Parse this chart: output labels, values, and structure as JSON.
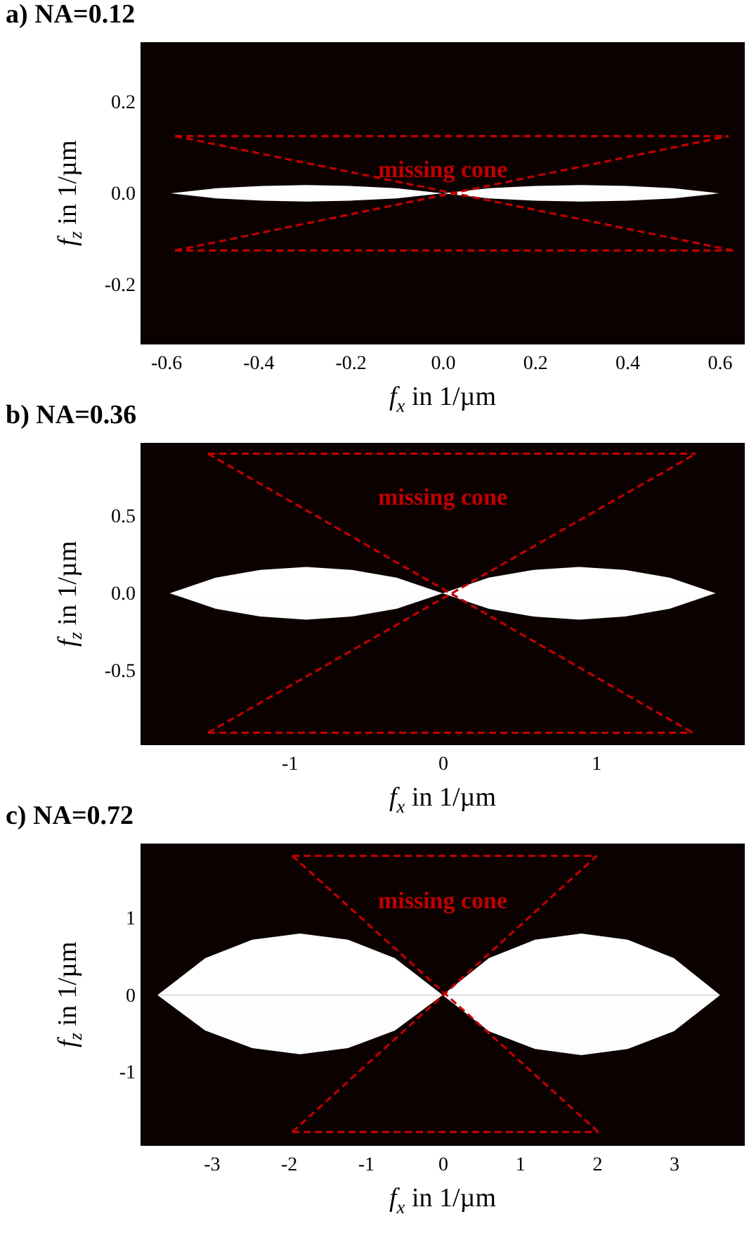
{
  "chart_data": [
    {
      "type": "area",
      "title": "a) NA=0.12",
      "xlabel": "f$_{x}$ in 1/µm",
      "ylabel": "f$_{z}$ in 1/µm",
      "xlim": [
        -0.655,
        0.655
      ],
      "ylim": [
        -0.33,
        0.33
      ],
      "xticks": [
        -0.6,
        -0.4,
        -0.2,
        {
          "value": 0,
          "label": "0.0"
        },
        0.2,
        0.4,
        0.6
      ],
      "yticks": [
        -0.2,
        {
          "value": 0,
          "label": "0.0"
        },
        0.2
      ],
      "grid": false,
      "annotations": [
        "missing cone"
      ],
      "series": [
        {
          "color": "#ffffff",
          "x": [
            -0.59,
            -0.49,
            -0.39,
            -0.295,
            -0.2,
            -0.1,
            0,
            0.1,
            0.2,
            0.3,
            0.4,
            0.5,
            0.6
          ],
          "values": [
            0,
            0.011,
            0.016,
            0.018,
            0.016,
            0.011,
            0,
            0.011,
            0.016,
            0.018,
            0.016,
            0.011,
            0
          ]
        },
        {
          "color": "#fdfdfd",
          "x": [
            -0.59,
            -0.49,
            -0.39,
            -0.295,
            -0.2,
            -0.1,
            0,
            0.1,
            0.2,
            0.3,
            0.4,
            0.5,
            0.6
          ],
          "values": [
            0,
            -0.011,
            -0.016,
            -0.018,
            -0.016,
            -0.011,
            0,
            -0.011,
            -0.016,
            -0.018,
            -0.016,
            -0.011,
            0
          ]
        },
        {
          "type": "line",
          "line_style": "dashed",
          "color": "#c00000",
          "x": [
            -0.58,
            0.62
          ],
          "values": [
            0.125,
            0.125
          ]
        },
        {
          "type": "line",
          "line_style": "dashed",
          "color": "#c00000",
          "x": [
            -0.58,
            0.63
          ],
          "values": [
            -0.125,
            -0.125
          ]
        },
        {
          "type": "line",
          "line_style": "dashed",
          "color": "#c00000",
          "x": [
            -0.58,
            0.63
          ],
          "values": [
            0.125,
            -0.125
          ]
        },
        {
          "type": "line",
          "line_style": "dashed",
          "color": "#c00000",
          "x": [
            -0.58,
            0.62
          ],
          "values": [
            -0.125,
            0.125
          ]
        }
      ]
    },
    {
      "type": "area",
      "title": "b) NA=0.36",
      "xlabel": "f$_{x}$ in 1/µm",
      "ylabel": "f$_{z}$ in 1/µm",
      "xlim": [
        -1.97,
        1.97
      ],
      "ylim": [
        -0.98,
        0.97
      ],
      "xticks": [
        -1,
        0,
        1
      ],
      "yticks": [
        -0.5,
        {
          "value": 0,
          "label": "0.0"
        },
        0.5
      ],
      "grid": false,
      "annotations": [
        "missing cone"
      ],
      "series": [
        {
          "color": "#ffffff",
          "x": [
            -1.78,
            -1.48,
            -1.19,
            -0.89,
            -0.59,
            -0.3,
            0,
            0.3,
            0.59,
            0.89,
            1.19,
            1.48,
            1.78
          ],
          "values": [
            0,
            0.1,
            0.15,
            0.17,
            0.15,
            0.1,
            0,
            0.1,
            0.15,
            0.17,
            0.15,
            0.1,
            0
          ]
        },
        {
          "color": "#fdfdfd",
          "x": [
            -1.78,
            -1.48,
            -1.19,
            -0.89,
            -0.59,
            -0.3,
            0,
            0.3,
            0.59,
            0.89,
            1.19,
            1.48,
            1.78
          ],
          "values": [
            0,
            -0.1,
            -0.15,
            -0.17,
            -0.15,
            -0.1,
            0,
            -0.1,
            -0.15,
            -0.17,
            -0.15,
            -0.1,
            0
          ]
        },
        {
          "type": "line",
          "line_style": "dashed",
          "color": "#c00000",
          "x": [
            -1.53,
            1.65
          ],
          "values": [
            0.9,
            0.9
          ]
        },
        {
          "type": "line",
          "line_style": "dashed",
          "color": "#c00000",
          "x": [
            -1.53,
            1.63
          ],
          "values": [
            -0.9,
            -0.9
          ]
        },
        {
          "type": "line",
          "line_style": "dashed",
          "color": "#c00000",
          "x": [
            -1.53,
            1.63
          ],
          "values": [
            0.9,
            -0.9
          ]
        },
        {
          "type": "line",
          "line_style": "dashed",
          "color": "#c00000",
          "x": [
            -1.53,
            1.65
          ],
          "values": [
            -0.9,
            0.9
          ]
        }
      ]
    },
    {
      "type": "area",
      "title": "c) NA=0.72",
      "xlabel": "f$_{x}$ in 1/µm",
      "ylabel": "f$_{z}$ in 1/µm",
      "xlim": [
        -3.92,
        3.92
      ],
      "ylim": [
        -1.96,
        1.97
      ],
      "xticks": [
        -3,
        -2,
        -1,
        0,
        1,
        2,
        3
      ],
      "yticks": [
        -1,
        0,
        1
      ],
      "grid": false,
      "annotations": [
        "missing cone"
      ],
      "series": [
        {
          "color": "#ffffff",
          "x": [
            -3.7,
            -3.08,
            -2.47,
            -1.85,
            -1.23,
            -0.62,
            0,
            0.6,
            1.2,
            1.8,
            2.4,
            3.0,
            3.6
          ],
          "values": [
            0,
            0.48,
            0.72,
            0.8,
            0.72,
            0.48,
            0,
            0.48,
            0.72,
            0.8,
            0.72,
            0.48,
            0
          ]
        },
        {
          "color": "#fdfdfd",
          "x": [
            -3.7,
            -3.08,
            -2.47,
            -1.85,
            -1.23,
            -0.62,
            0,
            0.6,
            1.2,
            1.8,
            2.4,
            3.0,
            3.6
          ],
          "values": [
            0,
            -0.46,
            -0.69,
            -0.77,
            -0.69,
            -0.46,
            0,
            -0.47,
            -0.7,
            -0.78,
            -0.7,
            -0.47,
            0
          ]
        },
        {
          "type": "line",
          "line_style": "dashed",
          "color": "#c00000",
          "x": [
            -1.95,
            2.0
          ],
          "values": [
            1.81,
            1.81
          ]
        },
        {
          "type": "line",
          "line_style": "dashed",
          "color": "#c00000",
          "x": [
            -1.95,
            2.02
          ],
          "values": [
            -1.78,
            -1.78
          ]
        },
        {
          "type": "line",
          "line_style": "dashed",
          "color": "#c00000",
          "x": [
            -1.95,
            2.02
          ],
          "values": [
            1.81,
            -1.78
          ]
        },
        {
          "type": "line",
          "line_style": "dashed",
          "color": "#c00000",
          "x": [
            -1.95,
            2.0
          ],
          "values": [
            -1.78,
            1.81
          ]
        }
      ]
    }
  ]
}
